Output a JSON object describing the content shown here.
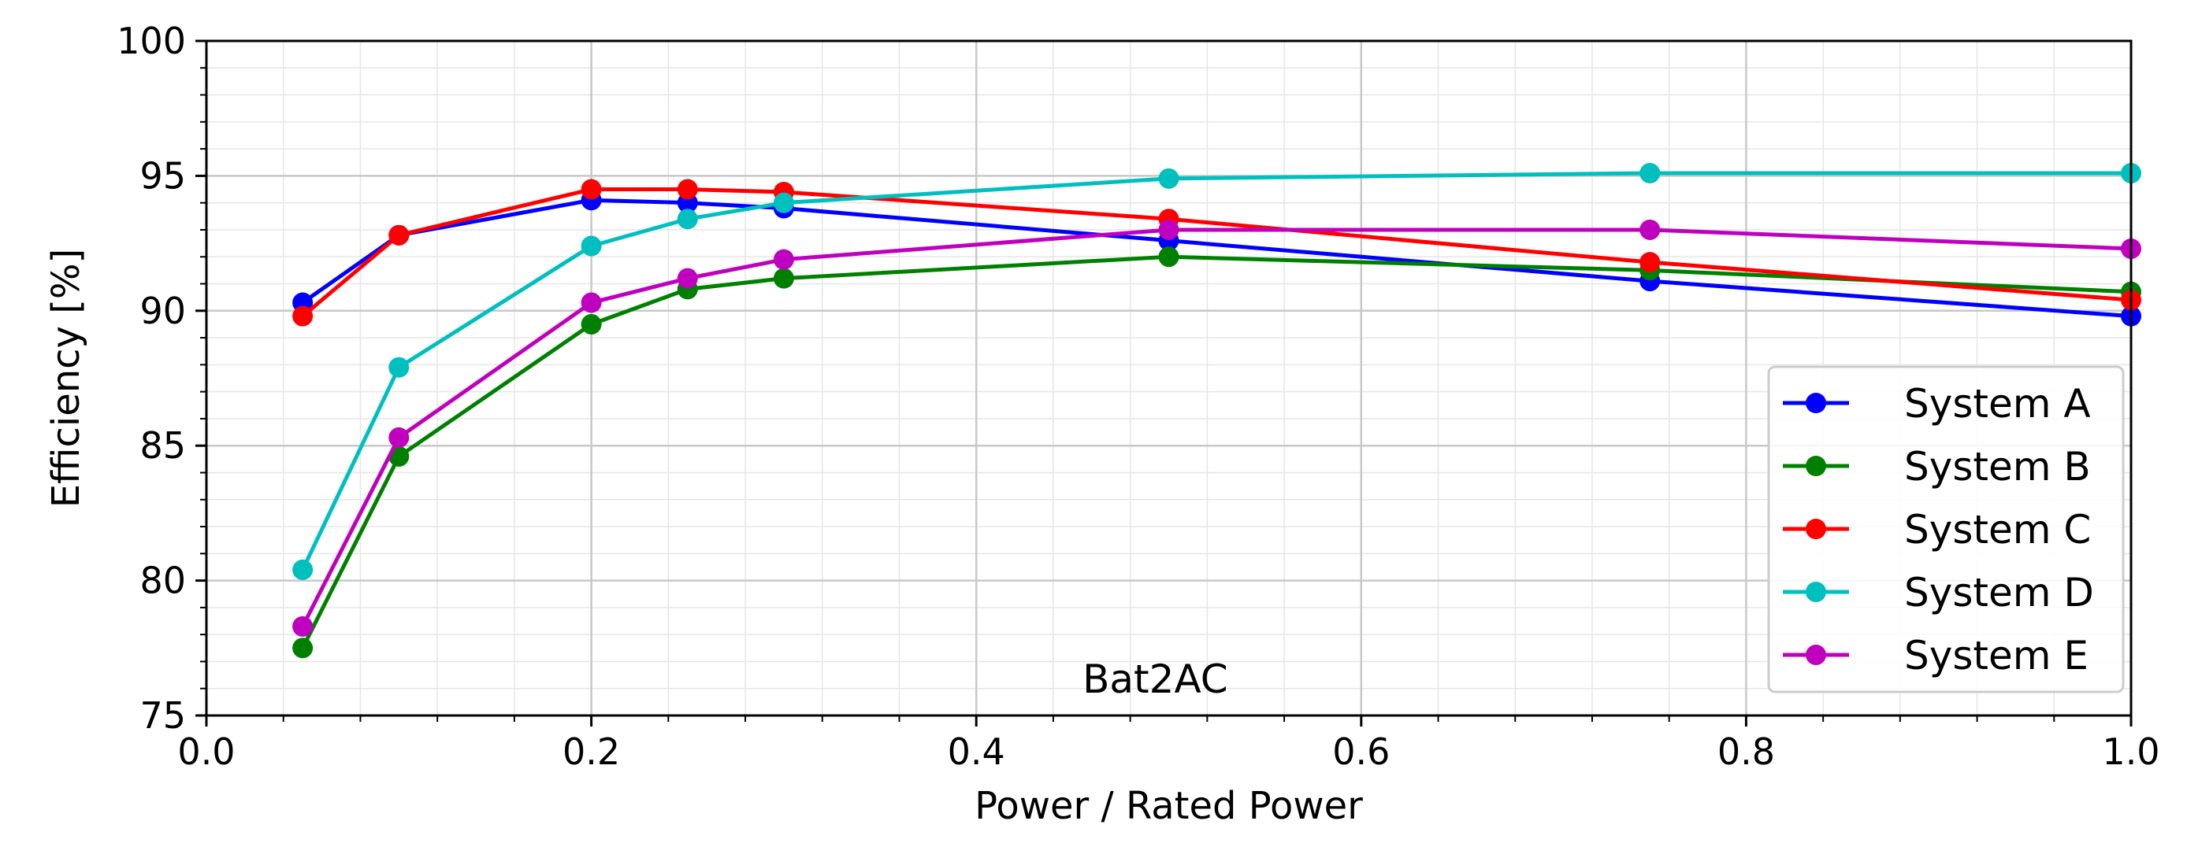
{
  "chart_data": {
    "type": "line",
    "title": "",
    "annotation": "Bat2AC",
    "xlabel": "Power / Rated Power",
    "ylabel": "Efficiency [%]",
    "xlim": [
      0.0,
      1.0
    ],
    "ylim": [
      75,
      100
    ],
    "xticks": [
      0.0,
      0.2,
      0.4,
      0.6,
      0.8,
      1.0
    ],
    "xtick_labels": [
      "0.0",
      "0.2",
      "0.4",
      "0.6",
      "0.8",
      "1.0"
    ],
    "yticks": [
      75,
      80,
      85,
      90,
      95,
      100
    ],
    "ytick_labels": [
      "75",
      "80",
      "85",
      "90",
      "95",
      "100"
    ],
    "x_minor_step": 0.04,
    "y_minor_step": 1,
    "grid": true,
    "legend_position": "lower-right",
    "x": [
      0.05,
      0.1,
      0.2,
      0.25,
      0.3,
      0.5,
      0.75,
      1.0
    ],
    "series": [
      {
        "name": "System A",
        "color": "#0000ff",
        "values": [
          90.3,
          92.8,
          94.1,
          94.0,
          93.8,
          92.6,
          91.1,
          89.8
        ]
      },
      {
        "name": "System B",
        "color": "#008000",
        "values": [
          77.5,
          84.6,
          89.5,
          90.8,
          91.2,
          92.0,
          91.5,
          90.7
        ]
      },
      {
        "name": "System C",
        "color": "#ff0000",
        "values": [
          89.8,
          92.8,
          94.5,
          94.5,
          94.4,
          93.4,
          91.8,
          90.4
        ]
      },
      {
        "name": "System D",
        "color": "#00bfbf",
        "values": [
          80.4,
          87.9,
          92.4,
          93.4,
          94.0,
          94.9,
          95.1,
          95.1
        ]
      },
      {
        "name": "System E",
        "color": "#bf00bf",
        "values": [
          78.3,
          85.3,
          90.3,
          91.2,
          91.9,
          93.0,
          93.0,
          92.3
        ]
      }
    ]
  }
}
